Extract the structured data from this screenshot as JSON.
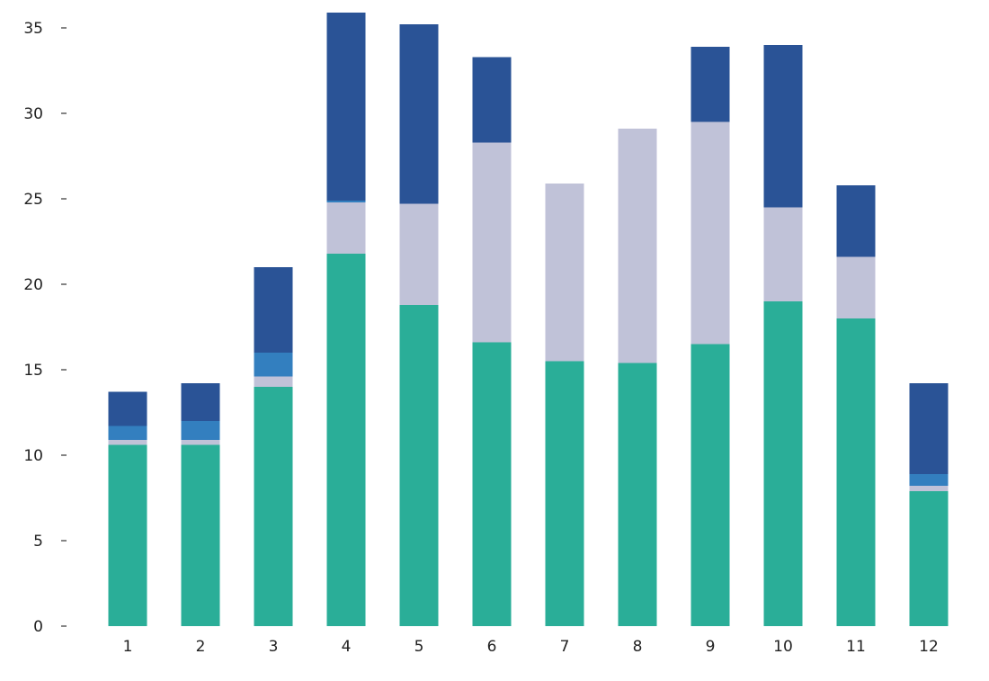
{
  "chart_data": {
    "type": "bar",
    "stacked": true,
    "title": "",
    "xlabel": "",
    "ylabel": "",
    "categories": [
      "1",
      "2",
      "3",
      "4",
      "5",
      "6",
      "7",
      "8",
      "9",
      "10",
      "11",
      "12"
    ],
    "ylim": [
      0,
      35
    ],
    "yticks": [
      "0",
      "5",
      "10",
      "15",
      "20",
      "25",
      "30",
      "35"
    ],
    "grid": false,
    "legend": "none",
    "series": [
      {
        "color": "#2aae98",
        "values": [
          10.6,
          10.6,
          14.0,
          21.8,
          18.8,
          16.6,
          15.5,
          15.4,
          16.5,
          19.0,
          18.0,
          7.9
        ]
      },
      {
        "color": "#c0c2d8",
        "values": [
          0.3,
          0.3,
          0.6,
          3.0,
          5.9,
          11.7,
          10.4,
          13.7,
          13.0,
          5.5,
          3.6,
          0.3
        ]
      },
      {
        "color": "#337fbf",
        "values": [
          0.8,
          1.1,
          1.4,
          0.1,
          0.0,
          0.0,
          0.0,
          0.0,
          0.0,
          0.0,
          0.0,
          0.7
        ]
      },
      {
        "color": "#2a5396",
        "values": [
          2.0,
          2.2,
          5.0,
          11.0,
          10.5,
          5.0,
          0.0,
          0.0,
          4.4,
          9.5,
          4.2,
          5.3
        ]
      }
    ]
  }
}
